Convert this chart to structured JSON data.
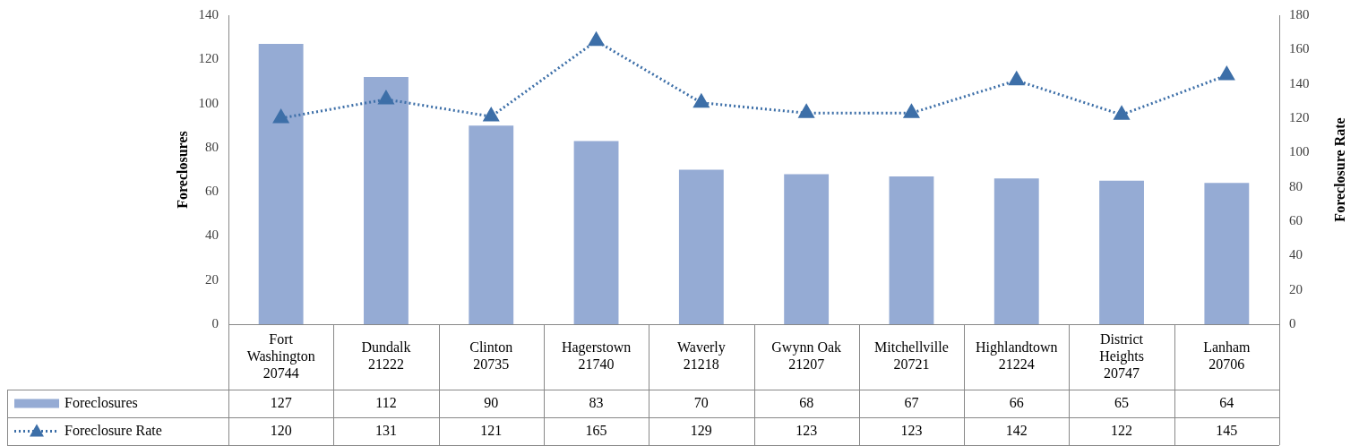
{
  "chart_data": {
    "type": "bar",
    "ylabel": "Foreclosures",
    "y2label": "Foreclosure Rate",
    "categories": [
      "Fort Washington 20744",
      "Dundalk 21222",
      "Clinton 20735",
      "Hagerstown 21740",
      "Waverly 21218",
      "Gwynn Oak 21207",
      "Mitchellville 20721",
      "Highlandtown 21224",
      "District Heights 20747",
      "Lanham 20706"
    ],
    "series": [
      {
        "name": "Foreclosures",
        "color": "#95abd4",
        "values": [
          127,
          112,
          90,
          83,
          70,
          68,
          67,
          66,
          65,
          64
        ]
      },
      {
        "name": "Foreclosure Rate",
        "type": "line",
        "axis": "y2",
        "color": "#3d6fa8",
        "marker": "triangle",
        "line_style": "dotted",
        "values": [
          120,
          131,
          121,
          165,
          129,
          123,
          123,
          142,
          122,
          145
        ]
      }
    ],
    "ylim": [
      0,
      140
    ],
    "yticks": [
      0,
      20,
      40,
      60,
      80,
      100,
      120,
      140
    ],
    "y2lim": [
      0,
      180
    ],
    "y2ticks": [
      0,
      20,
      40,
      60,
      80,
      100,
      120,
      140,
      160,
      180
    ],
    "grid": false,
    "legend": "bottom",
    "data_labels": true
  }
}
